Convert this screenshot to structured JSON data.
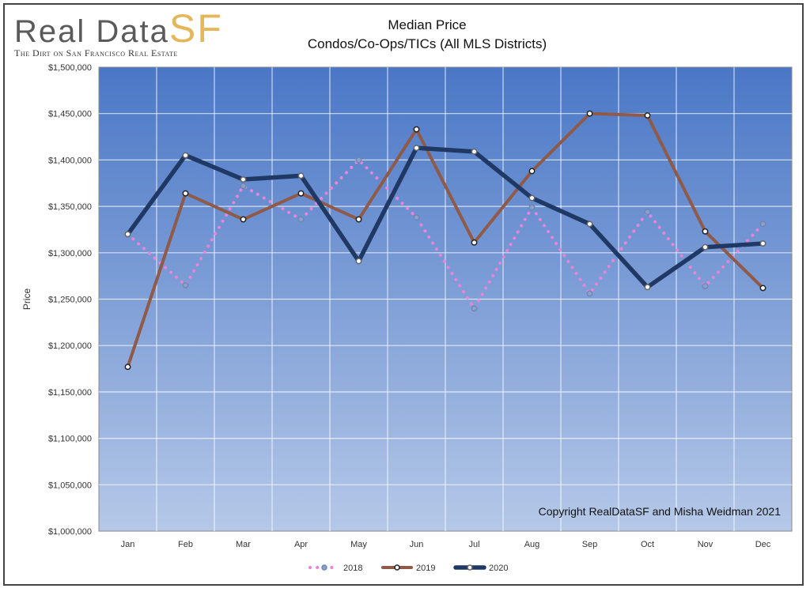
{
  "logo": {
    "text_main": "Real Data",
    "text_accent": "SF",
    "tagline": "The Dirt on San Francisco Real Estate"
  },
  "header": {
    "title": "Median Price",
    "subtitle": "Condos/Co-Ops/TICs  (All MLS Districts)"
  },
  "copyright": "Copyright RealDataSF and Misha Weidman 2021",
  "colors": {
    "plot_top": "#4a77c6",
    "plot_bottom": "#b5c8e8",
    "series_2018": "#e884d9",
    "series_2019": "#8f5a48",
    "series_2020": "#1f3864"
  },
  "chart_data": {
    "type": "line",
    "title": "Median Price",
    "subtitle": "Condos/Co-Ops/TICs  (All MLS Districts)",
    "ylabel": "Price",
    "xlabel": "",
    "ylim": [
      1000000,
      1500000
    ],
    "ytick_step": 50000,
    "yticks": [
      "$1,000,000",
      "$1,050,000",
      "$1,100,000",
      "$1,150,000",
      "$1,200,000",
      "$1,250,000",
      "$1,300,000",
      "$1,350,000",
      "$1,400,000",
      "$1,450,000",
      "$1,500,000"
    ],
    "categories": [
      "Jan",
      "Feb",
      "Mar",
      "Apr",
      "May",
      "Jun",
      "Jul",
      "Aug",
      "Sep",
      "Oct",
      "Nov",
      "Dec"
    ],
    "grid": true,
    "legend_position": "bottom",
    "series": [
      {
        "name": "2018",
        "style": "dotted",
        "values": [
          1320000,
          1265000,
          1372000,
          1336000,
          1400000,
          1338000,
          1240000,
          1349000,
          1256000,
          1344000,
          1264000,
          1331000
        ]
      },
      {
        "name": "2019",
        "style": "solid",
        "values": [
          1177000,
          1364000,
          1336000,
          1364000,
          1336000,
          1433000,
          1311000,
          1388000,
          1450000,
          1448000,
          1323000,
          1262000
        ]
      },
      {
        "name": "2020",
        "style": "solid-thick",
        "values": [
          1320000,
          1405000,
          1379000,
          1383000,
          1291000,
          1413000,
          1409000,
          1359000,
          1331000,
          1263000,
          1306000,
          1310000
        ]
      }
    ]
  }
}
